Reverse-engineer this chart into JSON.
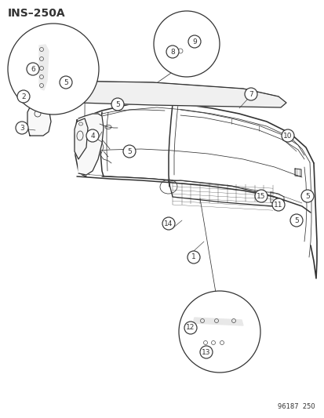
{
  "title": "INS–250A",
  "bg_color": "#ffffff",
  "line_color": "#333333",
  "figsize": [
    4.14,
    5.33
  ],
  "dpi": 100,
  "watermark": "96187  250",
  "title_fontsize": 10,
  "label_fontsize": 7.0
}
